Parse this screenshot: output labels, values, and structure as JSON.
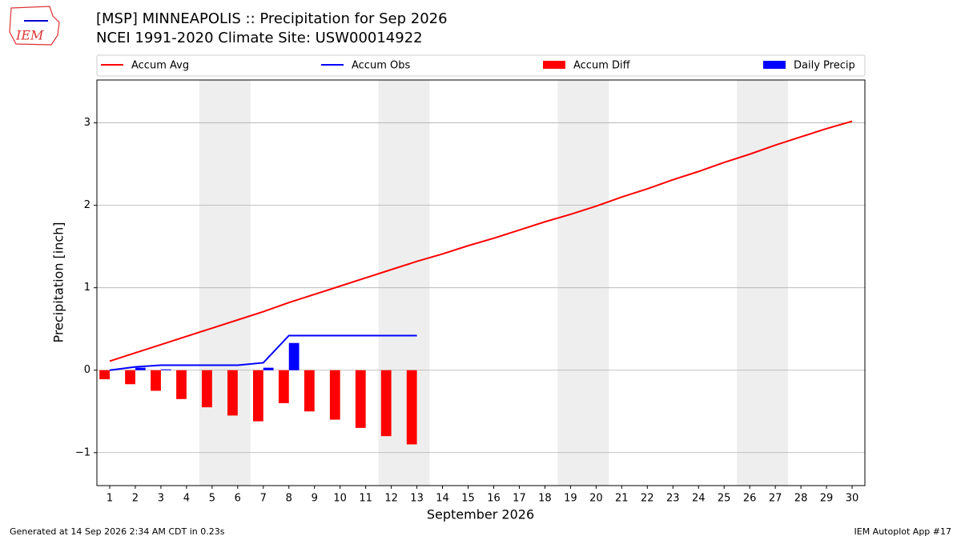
{
  "chart_data": {
    "type": "combo",
    "title": "[MSP] MINNEAPOLIS :: Precipitation for Sep 2026",
    "subtitle": "NCEI 1991-2020 Climate Site: USW00014922",
    "logo_text": "IEM",
    "xlabel": "September 2026",
    "ylabel": "Precipitation [inch]",
    "footer_left": "Generated at 14 Sep 2026 2:34 AM CDT in 0.23s",
    "footer_right": "IEM Autoplot App #17",
    "x": [
      1,
      2,
      3,
      4,
      5,
      6,
      7,
      8,
      9,
      10,
      11,
      12,
      13,
      14,
      15,
      16,
      17,
      18,
      19,
      20,
      21,
      22,
      23,
      24,
      25,
      26,
      27,
      28,
      29,
      30
    ],
    "xlim": [
      0.5,
      30.5
    ],
    "xticks": [
      1,
      2,
      3,
      4,
      5,
      6,
      7,
      8,
      9,
      10,
      11,
      12,
      13,
      14,
      15,
      16,
      17,
      18,
      19,
      20,
      21,
      22,
      23,
      24,
      25,
      26,
      27,
      28,
      29,
      30
    ],
    "ylim": [
      -1.4,
      3.52
    ],
    "yticks": [
      {
        "value": -1,
        "label": "−1"
      },
      0,
      1,
      2,
      3
    ],
    "grid": true,
    "shaded_spans": [
      [
        4.5,
        6.5
      ],
      [
        11.5,
        13.5
      ],
      [
        18.5,
        20.5
      ],
      [
        25.5,
        27.5
      ]
    ],
    "shade_color": "#eeeeee",
    "series": [
      {
        "name": "Accum Avg",
        "type": "line",
        "color": "#ff0000",
        "values": [
          0.11,
          0.21,
          0.31,
          0.41,
          0.51,
          0.61,
          0.71,
          0.82,
          0.92,
          1.02,
          1.12,
          1.22,
          1.32,
          1.41,
          1.51,
          1.6,
          1.7,
          1.8,
          1.89,
          1.99,
          2.1,
          2.2,
          2.31,
          2.41,
          2.52,
          2.62,
          2.73,
          2.83,
          2.93,
          3.02
        ]
      },
      {
        "name": "Accum Obs",
        "type": "line",
        "color": "#0000ff",
        "values": [
          0.0,
          0.04,
          0.06,
          0.06,
          0.06,
          0.06,
          0.09,
          0.42,
          0.42,
          0.42,
          0.42,
          0.42,
          0.42,
          null,
          null,
          null,
          null,
          null,
          null,
          null,
          null,
          null,
          null,
          null,
          null,
          null,
          null,
          null,
          null,
          null
        ]
      },
      {
        "name": "Accum Diff",
        "type": "bar",
        "color": "#ff0000",
        "offset": -0.4,
        "values": [
          -0.11,
          -0.17,
          -0.25,
          -0.35,
          -0.45,
          -0.55,
          -0.62,
          -0.4,
          -0.5,
          -0.6,
          -0.7,
          -0.8,
          -0.9,
          null,
          null,
          null,
          null,
          null,
          null,
          null,
          null,
          null,
          null,
          null,
          null,
          null,
          null,
          null,
          null,
          null
        ]
      },
      {
        "name": "Daily Precip",
        "type": "bar",
        "color": "#0000ff",
        "offset": 0,
        "values": [
          0.0,
          0.03,
          0.01,
          0.0,
          0.0,
          0.0,
          0.03,
          0.33,
          0.0,
          0.0,
          0.0,
          0.0,
          0.0,
          null,
          null,
          null,
          null,
          null,
          null,
          null,
          null,
          null,
          null,
          null,
          null,
          null,
          null,
          null,
          null,
          null
        ]
      }
    ]
  }
}
